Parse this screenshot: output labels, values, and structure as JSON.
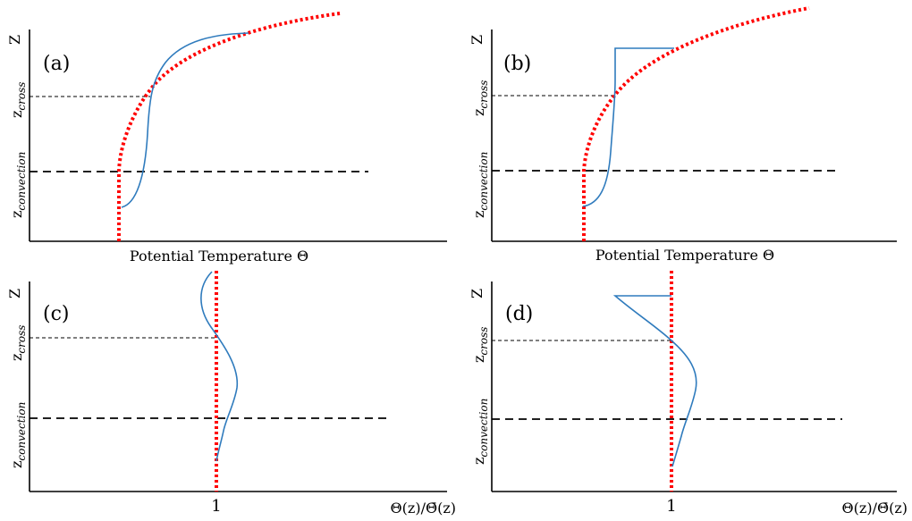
{
  "colors": {
    "reference_curve": "#ff0000",
    "profile_curve": "#2f7bbd",
    "axes": "#000000"
  },
  "y_axis": {
    "top_label": "Z",
    "cross_base": "z",
    "cross_sub": "cross",
    "convection_base": "z",
    "convection_sub": "convection"
  },
  "panels": {
    "a": {
      "label": "(a)",
      "xlabel": "Potential Temperature Θ"
    },
    "b": {
      "label": "(b)",
      "xlabel": "Potential Temperature Θ"
    },
    "c": {
      "label": "(c)",
      "xtick": "1",
      "xlabel": "Θ(z)/Θ̄(z)"
    },
    "d": {
      "label": "(d)",
      "xtick": "1",
      "xlabel": "Θ(z)/Θ̄(z)"
    }
  }
}
